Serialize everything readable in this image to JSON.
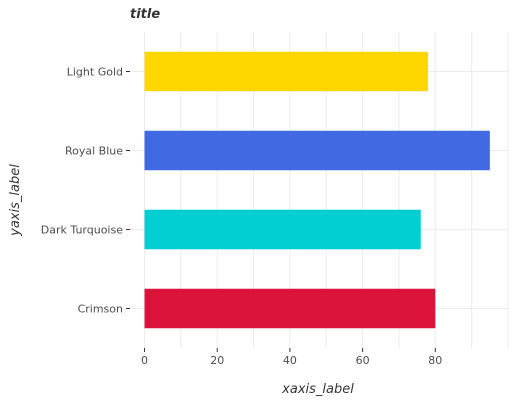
{
  "chart_data": {
    "type": "bar",
    "orientation": "horizontal",
    "title": "title",
    "xlabel": "xaxis_label",
    "ylabel": "yaxis_label",
    "categories": [
      "Crimson",
      "Dark Turquoise",
      "Royal Blue",
      "Light Gold"
    ],
    "values": [
      80,
      76,
      95,
      78
    ],
    "colors": [
      "#dc143c",
      "#00ced1",
      "#4169e1",
      "#ffd700"
    ],
    "xlim": [
      -4,
      100
    ],
    "xticks": [
      0,
      20,
      40,
      60,
      80
    ],
    "grid": true,
    "legend": "none"
  }
}
